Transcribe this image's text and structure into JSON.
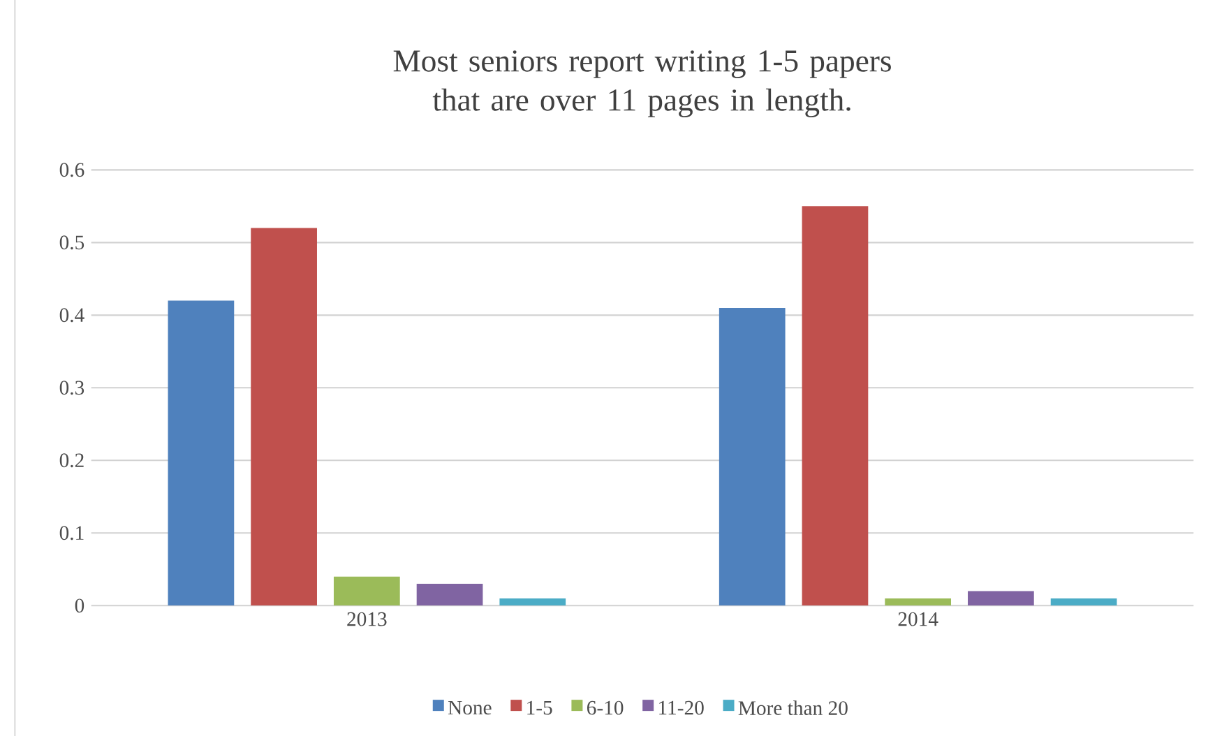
{
  "chart_data": {
    "type": "bar",
    "title": "Most seniors report writing 1-5 papers that are over 11 pages in length.",
    "categories": [
      "2013",
      "2014"
    ],
    "series": [
      {
        "name": "None",
        "color": "#4f81bd",
        "values": [
          0.42,
          0.41
        ]
      },
      {
        "name": "1-5",
        "color": "#c0504d",
        "values": [
          0.52,
          0.55
        ]
      },
      {
        "name": "6-10",
        "color": "#9bbb59",
        "values": [
          0.04,
          0.01
        ]
      },
      {
        "name": "11-20",
        "color": "#8064a2",
        "values": [
          0.03,
          0.02
        ]
      },
      {
        "name": "More than 20",
        "color": "#4bacc6",
        "values": [
          0.01,
          0.01
        ]
      }
    ],
    "ylim": [
      0,
      0.6
    ],
    "yticks": [
      0,
      0.1,
      0.2,
      0.3,
      0.4,
      0.5,
      0.6
    ],
    "grid": "y",
    "legend": "bottom"
  }
}
